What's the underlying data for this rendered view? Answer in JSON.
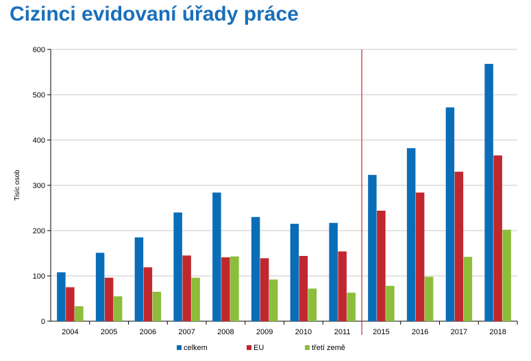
{
  "title": "Cizinci evidovaní úřady práce",
  "chart_data": {
    "type": "bar",
    "title": "Cizinci evidovaní úřady práce",
    "ylabel": "Tisíc osob",
    "xlabel": "",
    "ylim": [
      0,
      600
    ],
    "yticks": [
      0,
      100,
      200,
      300,
      400,
      500,
      600
    ],
    "grid": true,
    "legend": "bottom",
    "categories": [
      "2004",
      "2005",
      "2006",
      "2007",
      "2008",
      "2009",
      "2010",
      "2011",
      "2015",
      "2016",
      "2017",
      "2018"
    ],
    "series": [
      {
        "name": "celkem",
        "color": "#0a6db8",
        "values": [
          108,
          151,
          185,
          240,
          284,
          230,
          215,
          217,
          323,
          382,
          472,
          568
        ]
      },
      {
        "name": "EU",
        "color": "#c0282d",
        "values": [
          75,
          96,
          119,
          145,
          141,
          139,
          144,
          154,
          244,
          284,
          330,
          366
        ]
      },
      {
        "name": "třetí země",
        "color": "#8cbd3b",
        "values": [
          33,
          55,
          65,
          96,
          143,
          92,
          72,
          63,
          78,
          98,
          142,
          202
        ]
      }
    ],
    "separator_after_category": "2011",
    "separator_color": "#c0282d"
  }
}
